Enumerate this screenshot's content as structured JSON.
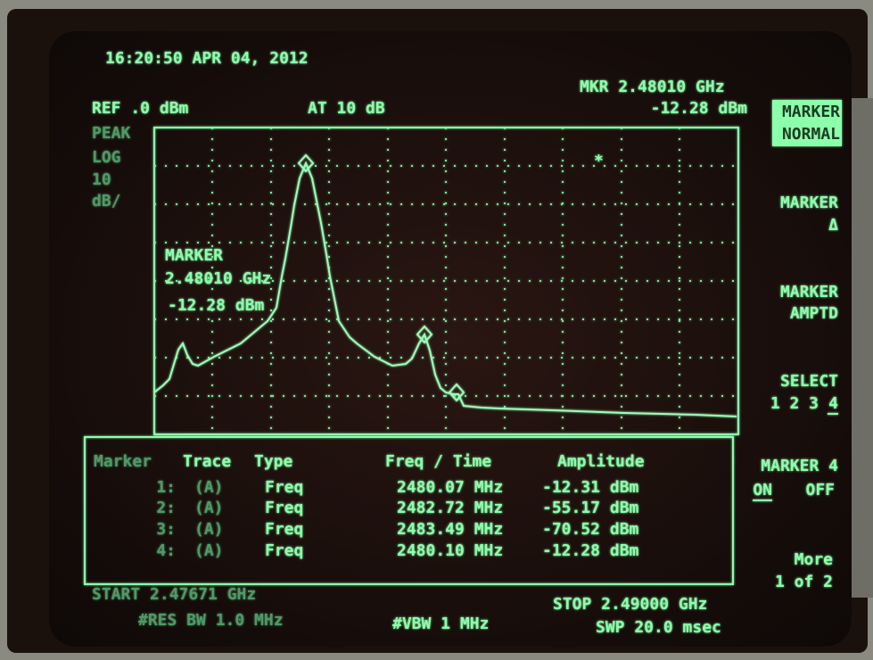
{
  "header": {
    "timestamp": "16:20:50 APR 04, 2012",
    "ref_level": "REF .0 dBm",
    "attenuation": "AT 10 dB",
    "marker_freq": "MKR 2.48010 GHz",
    "marker_amp": "-12.28 dBm"
  },
  "scale": [
    "PEAK",
    "LOG",
    "10",
    "dB/"
  ],
  "marker_readout": [
    "MARKER",
    "2.48010 GHz",
    "-12.28 dBm"
  ],
  "marker_table": {
    "headers": [
      "Marker",
      "Trace",
      "Type",
      "Freq / Time",
      "Amplitude"
    ],
    "rows": [
      [
        "1:",
        "(A)",
        "Freq",
        "2480.07 MHz",
        "-12.31 dBm"
      ],
      [
        "2:",
        "(A)",
        "Freq",
        "2482.72 MHz",
        "-55.17 dBm"
      ],
      [
        "3:",
        "(A)",
        "Freq",
        "2483.49 MHz",
        "-70.52 dBm"
      ],
      [
        "4:",
        "(A)",
        "Freq",
        "2480.10 MHz",
        "-12.28 dBm"
      ]
    ]
  },
  "footer": {
    "start": "START 2.47671 GHz",
    "res_bw": "#RES BW 1.0 MHz",
    "vbw": "#VBW 1 MHz",
    "stop": "STOP 2.49000 GHz",
    "sweep": "SWP 20.0 msec"
  },
  "softkeys": [
    [
      "MARKER",
      "NORMAL"
    ],
    [
      "MARKER",
      "Δ"
    ],
    [
      "MARKER",
      "AMPTD"
    ],
    [
      "SELECT",
      "1 2 3",
      "4"
    ],
    [
      "MARKER 4",
      "ON",
      "OFF"
    ],
    [
      "More",
      "1 of 2"
    ]
  ]
}
